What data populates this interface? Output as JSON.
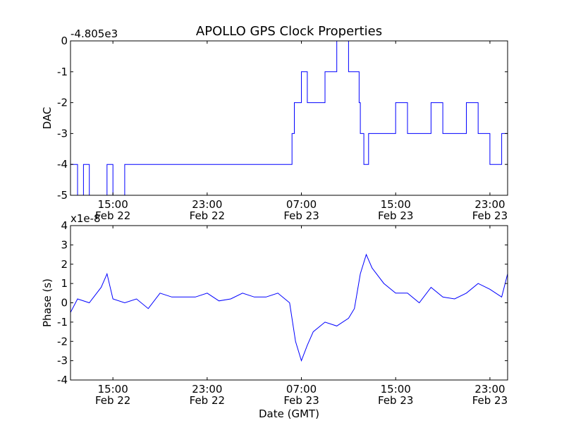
{
  "title": "APOLLO GPS Clock Properties",
  "chart_data": [
    {
      "type": "line",
      "ylabel": "DAC",
      "xlabel": "",
      "y_offset_label": "-4.805e3",
      "ylim": [
        -5,
        0
      ],
      "yticks": [
        "0",
        "-1",
        "-2",
        "-3",
        "-4",
        "-5"
      ],
      "line_color": "#0000ff",
      "xlim_hours": [
        11.4,
        48.5
      ],
      "xticks": [
        {
          "time": "15:00",
          "date": "Feb 22"
        },
        {
          "time": "23:00",
          "date": "Feb 22"
        },
        {
          "time": "07:00",
          "date": "Feb 23"
        },
        {
          "time": "15:00",
          "date": "Feb 23"
        },
        {
          "time": "23:00",
          "date": "Feb 23"
        }
      ],
      "series": [
        {
          "x_hours": [
            11.4,
            12.0,
            12.5,
            13.0,
            13.5,
            14.0,
            14.5,
            15.0,
            16.0,
            17.0,
            18.0,
            19.0,
            20.0,
            21.0,
            22.0,
            23.0,
            24.0,
            25.0,
            26.0,
            27.0,
            28.0,
            29.0,
            30.0,
            30.2,
            30.4,
            30.6,
            31.0,
            31.5,
            32.0,
            33.0,
            34.0,
            35.0,
            35.5,
            35.9,
            36.0,
            36.3,
            36.7,
            37.0,
            38.0,
            39.0,
            40.0,
            41.0,
            42.0,
            43.0,
            44.0,
            45.0,
            46.0,
            47.0,
            48.0,
            48.5
          ],
          "y": [
            -4,
            -5,
            -4,
            -5,
            -5,
            -5,
            -4,
            -5,
            -4,
            -4,
            -4,
            -4,
            -4,
            -4,
            -4,
            -4,
            -4,
            -4,
            -4,
            -4,
            -4,
            -4,
            -4,
            -3,
            -2,
            -2,
            -1,
            -2,
            -2,
            -1,
            0,
            -1,
            -1,
            -2,
            -3,
            -4,
            -3,
            -3,
            -3,
            -2,
            -3,
            -3,
            -2,
            -3,
            -3,
            -2,
            -3,
            -4,
            -3,
            -4
          ]
        }
      ]
    },
    {
      "type": "line",
      "ylabel": "Phase (s)",
      "xlabel": "Date (GMT)",
      "y_offset_label": "x1e-8",
      "ylim": [
        -4,
        4
      ],
      "yticks": [
        "4",
        "3",
        "2",
        "1",
        "0",
        "-1",
        "-2",
        "-3",
        "-4"
      ],
      "line_color": "#0000ff",
      "xlim_hours": [
        11.4,
        48.5
      ],
      "xticks": [
        {
          "time": "15:00",
          "date": "Feb 22"
        },
        {
          "time": "23:00",
          "date": "Feb 22"
        },
        {
          "time": "07:00",
          "date": "Feb 23"
        },
        {
          "time": "15:00",
          "date": "Feb 23"
        },
        {
          "time": "23:00",
          "date": "Feb 23"
        }
      ],
      "series": [
        {
          "x_hours": [
            11.4,
            12.0,
            13.0,
            14.0,
            14.5,
            15.0,
            16.0,
            17.0,
            18.0,
            19.0,
            20.0,
            21.0,
            22.0,
            23.0,
            24.0,
            25.0,
            26.0,
            27.0,
            28.0,
            29.0,
            30.0,
            30.5,
            31.0,
            31.5,
            32.0,
            33.0,
            34.0,
            35.0,
            35.5,
            36.0,
            36.5,
            37.0,
            38.0,
            39.0,
            40.0,
            41.0,
            42.0,
            43.0,
            44.0,
            45.0,
            46.0,
            47.0,
            48.0,
            48.5
          ],
          "y": [
            -0.5,
            0.2,
            0.0,
            0.8,
            1.5,
            0.2,
            0.0,
            0.2,
            -0.3,
            0.5,
            0.3,
            0.3,
            0.3,
            0.5,
            0.1,
            0.2,
            0.5,
            0.3,
            0.3,
            0.5,
            0.0,
            -2.0,
            -3.0,
            -2.2,
            -1.5,
            -1.0,
            -1.2,
            -0.8,
            -0.3,
            1.5,
            2.5,
            1.8,
            1.0,
            0.5,
            0.5,
            0.0,
            0.8,
            0.3,
            0.2,
            0.5,
            1.0,
            0.7,
            0.3,
            1.5
          ]
        }
      ]
    }
  ]
}
